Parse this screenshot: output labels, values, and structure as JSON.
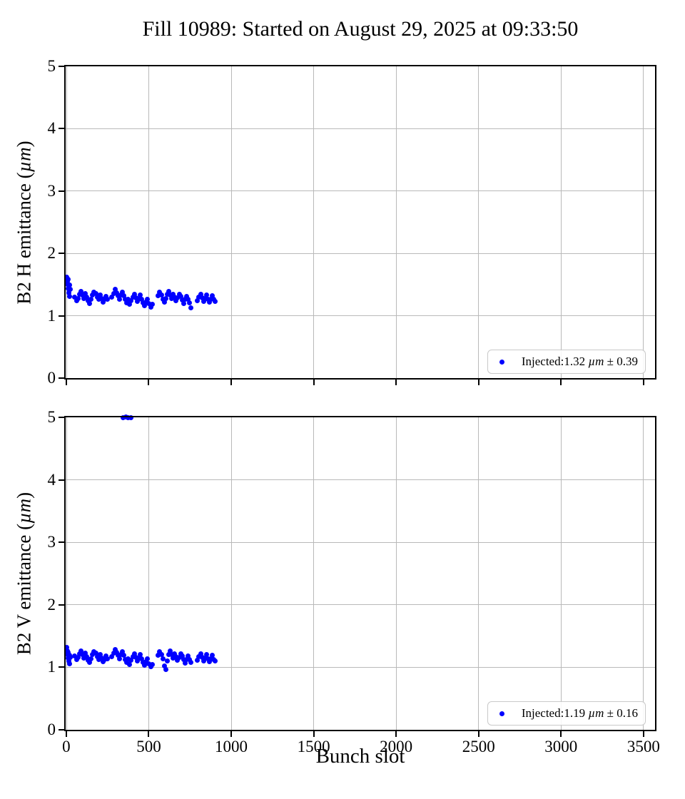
{
  "title": "Fill 10989: Started on August 29, 2025 at 09:33:50",
  "accent_colors": {
    "marker": "#0000ff",
    "grid": "#b9b9b9",
    "spine": "#000000"
  },
  "chart_data": {
    "type": "scatter",
    "title": "Fill 10989: Started on August 29, 2025 at 09:33:50",
    "xlabel": "Bunch slot",
    "x_range": [
      -4,
      3570
    ],
    "xticks": [
      0,
      500,
      1000,
      1500,
      2000,
      2500,
      3000,
      3500
    ],
    "grid": true,
    "marker_color": "#0000ff",
    "legend_position": "lower right",
    "plots": [
      {
        "ylabel_prefix": "B2 H emittance (",
        "ylabel_mu": "µm",
        "ylabel_suffix": ")",
        "y_range": [
          0,
          5
        ],
        "yticks": [
          0,
          1,
          2,
          3,
          4,
          5
        ],
        "show_xticklabels": false,
        "legend": {
          "prefix": "Injected:1.32 ",
          "mu": "µm",
          "suffix": " ± 0.39"
        },
        "points": [
          [
            3,
            1.62
          ],
          [
            5,
            1.55
          ],
          [
            8,
            1.5
          ],
          [
            10,
            1.44
          ],
          [
            13,
            1.58
          ],
          [
            16,
            1.37
          ],
          [
            18,
            1.49
          ],
          [
            21,
            1.31
          ],
          [
            24,
            1.42
          ],
          [
            52,
            1.3
          ],
          [
            61,
            1.24
          ],
          [
            70,
            1.28
          ],
          [
            79,
            1.35
          ],
          [
            88,
            1.39
          ],
          [
            97,
            1.33
          ],
          [
            106,
            1.28
          ],
          [
            115,
            1.36
          ],
          [
            124,
            1.3
          ],
          [
            133,
            1.24
          ],
          [
            142,
            1.2
          ],
          [
            151,
            1.27
          ],
          [
            160,
            1.33
          ],
          [
            169,
            1.38
          ],
          [
            178,
            1.36
          ],
          [
            187,
            1.3
          ],
          [
            196,
            1.26
          ],
          [
            205,
            1.33
          ],
          [
            214,
            1.28
          ],
          [
            223,
            1.22
          ],
          [
            232,
            1.26
          ],
          [
            241,
            1.31
          ],
          [
            250,
            1.27
          ],
          [
            277,
            1.3
          ],
          [
            286,
            1.36
          ],
          [
            295,
            1.42
          ],
          [
            304,
            1.37
          ],
          [
            313,
            1.32
          ],
          [
            322,
            1.27
          ],
          [
            331,
            1.33
          ],
          [
            340,
            1.38
          ],
          [
            349,
            1.32
          ],
          [
            358,
            1.26
          ],
          [
            367,
            1.21
          ],
          [
            376,
            1.27
          ],
          [
            385,
            1.18
          ],
          [
            394,
            1.24
          ],
          [
            403,
            1.3
          ],
          [
            412,
            1.35
          ],
          [
            421,
            1.29
          ],
          [
            430,
            1.23
          ],
          [
            439,
            1.28
          ],
          [
            448,
            1.33
          ],
          [
            457,
            1.27
          ],
          [
            466,
            1.21
          ],
          [
            475,
            1.16
          ],
          [
            484,
            1.22
          ],
          [
            493,
            1.27
          ],
          [
            502,
            1.19
          ],
          [
            511,
            1.14
          ],
          [
            520,
            1.18
          ],
          [
            558,
            1.32
          ],
          [
            567,
            1.38
          ],
          [
            576,
            1.33
          ],
          [
            585,
            1.27
          ],
          [
            594,
            1.22
          ],
          [
            603,
            1.28
          ],
          [
            612,
            1.34
          ],
          [
            621,
            1.39
          ],
          [
            630,
            1.33
          ],
          [
            639,
            1.28
          ],
          [
            648,
            1.35
          ],
          [
            657,
            1.3
          ],
          [
            666,
            1.24
          ],
          [
            675,
            1.29
          ],
          [
            684,
            1.35
          ],
          [
            693,
            1.31
          ],
          [
            702,
            1.25
          ],
          [
            711,
            1.2
          ],
          [
            720,
            1.26
          ],
          [
            729,
            1.31
          ],
          [
            738,
            1.26
          ],
          [
            747,
            1.21
          ],
          [
            756,
            1.13
          ],
          [
            796,
            1.24
          ],
          [
            805,
            1.3
          ],
          [
            814,
            1.35
          ],
          [
            823,
            1.29
          ],
          [
            832,
            1.23
          ],
          [
            841,
            1.28
          ],
          [
            850,
            1.33
          ],
          [
            859,
            1.27
          ],
          [
            868,
            1.22
          ],
          [
            877,
            1.27
          ],
          [
            886,
            1.32
          ],
          [
            895,
            1.26
          ],
          [
            904,
            1.23
          ]
        ]
      },
      {
        "ylabel_prefix": "B2 V emittance (",
        "ylabel_mu": "µm",
        "ylabel_suffix": ")",
        "y_range": [
          0,
          5
        ],
        "yticks": [
          0,
          1,
          2,
          3,
          4,
          5
        ],
        "show_xticklabels": true,
        "legend": {
          "prefix": "Injected:1.19 ",
          "mu": "µm",
          "suffix": " ± 0.16"
        },
        "points": [
          [
            3,
            1.32
          ],
          [
            5,
            1.26
          ],
          [
            8,
            1.21
          ],
          [
            10,
            1.15
          ],
          [
            13,
            1.24
          ],
          [
            16,
            1.1
          ],
          [
            18,
            1.19
          ],
          [
            21,
            1.06
          ],
          [
            24,
            1.16
          ],
          [
            52,
            1.18
          ],
          [
            61,
            1.12
          ],
          [
            70,
            1.16
          ],
          [
            79,
            1.22
          ],
          [
            88,
            1.26
          ],
          [
            97,
            1.2
          ],
          [
            106,
            1.15
          ],
          [
            115,
            1.23
          ],
          [
            124,
            1.17
          ],
          [
            133,
            1.11
          ],
          [
            142,
            1.08
          ],
          [
            151,
            1.14
          ],
          [
            160,
            1.2
          ],
          [
            169,
            1.25
          ],
          [
            178,
            1.23
          ],
          [
            187,
            1.17
          ],
          [
            196,
            1.13
          ],
          [
            205,
            1.2
          ],
          [
            214,
            1.15
          ],
          [
            223,
            1.09
          ],
          [
            232,
            1.13
          ],
          [
            241,
            1.18
          ],
          [
            250,
            1.14
          ],
          [
            277,
            1.17
          ],
          [
            286,
            1.23
          ],
          [
            295,
            1.28
          ],
          [
            304,
            1.24
          ],
          [
            313,
            1.19
          ],
          [
            322,
            1.14
          ],
          [
            331,
            1.2
          ],
          [
            340,
            1.25
          ],
          [
            349,
            1.19
          ],
          [
            358,
            1.13
          ],
          [
            367,
            1.08
          ],
          [
            376,
            1.14
          ],
          [
            385,
            1.05
          ],
          [
            394,
            1.11
          ],
          [
            403,
            1.17
          ],
          [
            412,
            1.22
          ],
          [
            421,
            1.16
          ],
          [
            430,
            1.1
          ],
          [
            439,
            1.15
          ],
          [
            448,
            1.2
          ],
          [
            457,
            1.14
          ],
          [
            466,
            1.08
          ],
          [
            475,
            1.03
          ],
          [
            484,
            1.09
          ],
          [
            493,
            1.14
          ],
          [
            502,
            1.06
          ],
          [
            511,
            1.01
          ],
          [
            520,
            1.05
          ],
          [
            558,
            1.19
          ],
          [
            567,
            1.25
          ],
          [
            576,
            1.2
          ],
          [
            585,
            1.14
          ],
          [
            594,
            1.02
          ],
          [
            603,
            0.97
          ],
          [
            612,
            1.1
          ],
          [
            621,
            1.21
          ],
          [
            630,
            1.26
          ],
          [
            639,
            1.2
          ],
          [
            648,
            1.15
          ],
          [
            657,
            1.22
          ],
          [
            666,
            1.17
          ],
          [
            675,
            1.11
          ],
          [
            684,
            1.16
          ],
          [
            693,
            1.22
          ],
          [
            702,
            1.18
          ],
          [
            711,
            1.12
          ],
          [
            720,
            1.07
          ],
          [
            729,
            1.13
          ],
          [
            738,
            1.18
          ],
          [
            747,
            1.13
          ],
          [
            756,
            1.08
          ],
          [
            796,
            1.11
          ],
          [
            805,
            1.17
          ],
          [
            814,
            1.22
          ],
          [
            823,
            1.16
          ],
          [
            832,
            1.1
          ],
          [
            841,
            1.15
          ],
          [
            850,
            1.2
          ],
          [
            859,
            1.14
          ],
          [
            868,
            1.09
          ],
          [
            877,
            1.14
          ],
          [
            886,
            1.19
          ],
          [
            895,
            1.13
          ],
          [
            904,
            1.1
          ],
          [
            345,
            5.0
          ],
          [
            360,
            5.01
          ],
          [
            375,
            4.99
          ],
          [
            390,
            5.0
          ]
        ]
      }
    ]
  }
}
